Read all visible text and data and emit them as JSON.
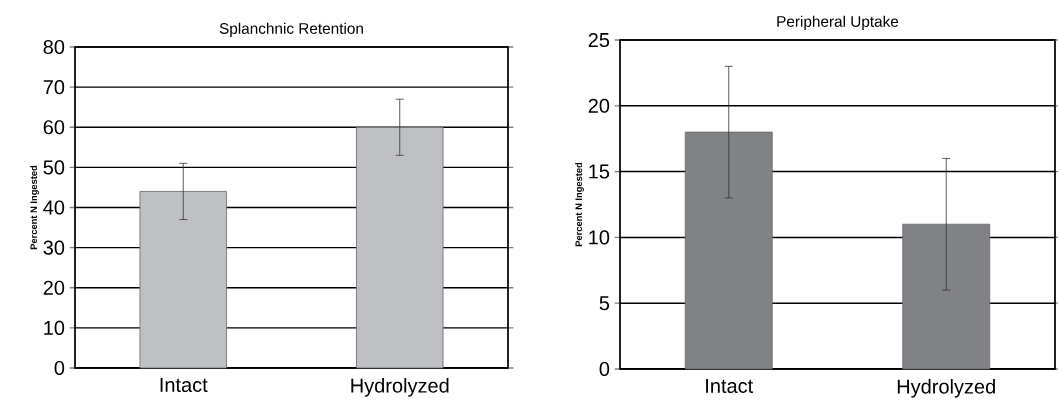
{
  "chart_data": [
    {
      "type": "bar",
      "title": "Splanchnic Retention",
      "ylabel": "Percent N Ingested",
      "categories": [
        "Intact",
        "Hydrolyzed"
      ],
      "series": [
        {
          "color": "#bfc0c4",
          "values": [
            44,
            60
          ],
          "errors": [
            7,
            7
          ]
        }
      ],
      "ylim": [
        0,
        80
      ],
      "yticks": [
        0,
        10,
        20,
        30,
        40,
        50,
        60,
        70,
        80
      ],
      "grid": "y"
    },
    {
      "type": "bar",
      "title": "Peripheral Uptake",
      "ylabel": "Percent N Ingested",
      "categories": [
        "Intact",
        "Hydrolyzed"
      ],
      "series": [
        {
          "color": "#808285",
          "values": [
            18,
            11
          ],
          "errors": [
            5,
            5
          ]
        }
      ],
      "ylim": [
        0,
        25
      ],
      "yticks": [
        0,
        5,
        10,
        15,
        20,
        25
      ],
      "grid": "y"
    }
  ]
}
